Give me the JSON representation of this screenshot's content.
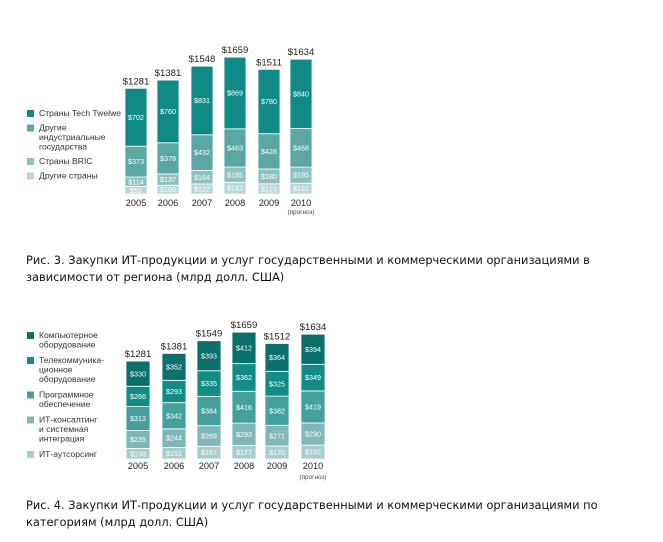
{
  "chart_data": [
    {
      "type": "bar",
      "stacked": true,
      "categories": [
        "2005",
        "2006",
        "2007",
        "2008",
        "2009",
        "2010"
      ],
      "category_notes": [
        "",
        "",
        "",
        "",
        "",
        "(прогноз)"
      ],
      "totals": [
        1281,
        1381,
        1548,
        1659,
        1511,
        1634
      ],
      "total_labels": [
        "$1281",
        "$1381",
        "$1548",
        "$1659",
        "$1511",
        "$1634"
      ],
      "series": [
        {
          "name": "Страны Tech Twelwe",
          "color": "#0f8a86",
          "values": [
            702,
            760,
            831,
            869,
            780,
            840
          ],
          "labels": [
            "$702",
            "$760",
            "$831",
            "$869",
            "$780",
            "$840"
          ]
        },
        {
          "name": "Другие индустриальные государства",
          "color": "#5aa7a4",
          "values": [
            373,
            378,
            432,
            463,
            428,
            468
          ],
          "labels": [
            "$373",
            "$378",
            "$432",
            "$463",
            "$428",
            "$468"
          ]
        },
        {
          "name": "Страны BRIC",
          "color": "#8ec0c0",
          "values": [
            114,
            137,
            164,
            185,
            180,
            195
          ],
          "labels": [
            "$114",
            "$137",
            "$164",
            "$185",
            "$180",
            "$195"
          ]
        },
        {
          "name": "Другие страны",
          "color": "#b9d6d7",
          "values": [
            92,
            106,
            122,
            142,
            123,
            131
          ],
          "labels": [
            "$92",
            "$106",
            "$122",
            "$142",
            "$123",
            "$131"
          ]
        }
      ],
      "legend_lines": [
        [
          "Страны Tech Twelwe"
        ],
        [
          "Другие",
          "индустриальные",
          "государства"
        ],
        [
          "Страны BRIC"
        ],
        [
          "Другие страны"
        ]
      ],
      "legend_position": "left",
      "grid": false
    },
    {
      "type": "bar",
      "stacked": true,
      "categories": [
        "2005",
        "2006",
        "2007",
        "2008",
        "2009",
        "2010"
      ],
      "category_notes": [
        "",
        "",
        "",
        "",
        "",
        "(прогноз)"
      ],
      "totals": [
        1281,
        1381,
        1549,
        1659,
        1512,
        1634
      ],
      "total_labels": [
        "$1281",
        "$1381",
        "$1549",
        "$1659",
        "$1512",
        "$1634"
      ],
      "series": [
        {
          "name": "Компьютерное оборудование",
          "color": "#0b6f6b",
          "values": [
            330,
            352,
            393,
            412,
            364,
            394
          ],
          "labels": [
            "$330",
            "$352",
            "$393",
            "$412",
            "$364",
            "$394"
          ]
        },
        {
          "name": "Телекоммуникационное оборудование",
          "color": "#138c87",
          "values": [
            266,
            293,
            335,
            362,
            325,
            349
          ],
          "labels": [
            "$266",
            "$293",
            "$335",
            "$362",
            "$325",
            "$349"
          ]
        },
        {
          "name": "Программное обеспечение",
          "color": "#43a09c",
          "values": [
            313,
            342,
            384,
            416,
            382,
            419
          ],
          "labels": [
            "$313",
            "$342",
            "$384",
            "$416",
            "$382",
            "$419"
          ]
        },
        {
          "name": "ИТ-консалтинг и системная интеграция",
          "color": "#7fb7b8",
          "values": [
            235,
            244,
            269,
            293,
            271,
            290
          ],
          "labels": [
            "$235",
            "$244",
            "$269",
            "$293",
            "$271",
            "$290"
          ]
        },
        {
          "name": "ИТ-аутсорсинг",
          "color": "#a9cccd",
          "values": [
            138,
            151,
            167,
            177,
            170,
            182
          ],
          "labels": [
            "$138",
            "$151",
            "$167",
            "$177",
            "$170",
            "$182"
          ]
        }
      ],
      "legend_lines": [
        [
          "Компьютерное",
          "оборудование"
        ],
        [
          "Телекоммуника-",
          "ционное",
          "оборудование"
        ],
        [
          "Программное",
          "обеспечение"
        ],
        [
          "ИТ-консалтинг",
          "и системная",
          "интеграция"
        ],
        [
          "ИТ-аутсорсинг"
        ]
      ],
      "legend_position": "left",
      "grid": false
    }
  ],
  "captions": {
    "fig3": "Рис. 3. Закупки ИТ-продукции и услуг государственными и коммерческими организациями в зависимости от региона (млрд долл. США)",
    "fig4": "Рис. 4. Закупки ИТ-продукции и услуг государственными и коммерческими организациями по категориям (млрд долл. США)"
  }
}
